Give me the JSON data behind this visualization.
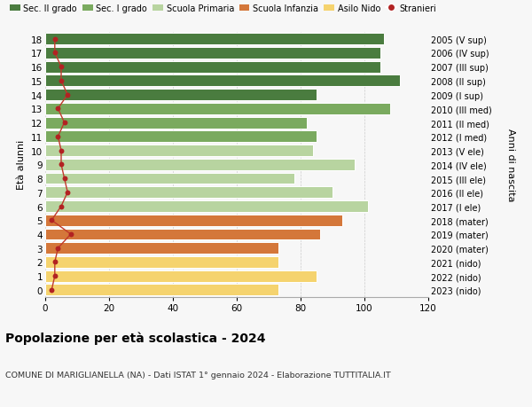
{
  "ages": [
    18,
    17,
    16,
    15,
    14,
    13,
    12,
    11,
    10,
    9,
    8,
    7,
    6,
    5,
    4,
    3,
    2,
    1,
    0
  ],
  "years": [
    "2005 (V sup)",
    "2006 (IV sup)",
    "2007 (III sup)",
    "2008 (II sup)",
    "2009 (I sup)",
    "2010 (III med)",
    "2011 (II med)",
    "2012 (I med)",
    "2013 (V ele)",
    "2014 (IV ele)",
    "2015 (III ele)",
    "2016 (II ele)",
    "2017 (I ele)",
    "2018 (mater)",
    "2019 (mater)",
    "2020 (mater)",
    "2021 (nido)",
    "2022 (nido)",
    "2023 (nido)"
  ],
  "values": [
    106,
    105,
    105,
    111,
    85,
    108,
    82,
    85,
    84,
    97,
    78,
    90,
    101,
    93,
    86,
    73,
    73,
    85,
    73
  ],
  "stranieri": [
    3,
    3,
    5,
    5,
    7,
    4,
    6,
    4,
    5,
    5,
    6,
    7,
    5,
    2,
    8,
    4,
    3,
    3,
    2
  ],
  "bar_colors": [
    "#4a7c3f",
    "#4a7c3f",
    "#4a7c3f",
    "#4a7c3f",
    "#4a7c3f",
    "#7aaa5f",
    "#7aaa5f",
    "#7aaa5f",
    "#b8d4a0",
    "#b8d4a0",
    "#b8d4a0",
    "#b8d4a0",
    "#b8d4a0",
    "#d4773a",
    "#d4773a",
    "#d4773a",
    "#f5d36e",
    "#f5d36e",
    "#f5d36e"
  ],
  "legend_labels": [
    "Sec. II grado",
    "Sec. I grado",
    "Scuola Primaria",
    "Scuola Infanzia",
    "Asilo Nido",
    "Stranieri"
  ],
  "legend_colors": [
    "#4a7c3f",
    "#7aaa5f",
    "#b8d4a0",
    "#d4773a",
    "#f5d36e",
    "#b22222"
  ],
  "title": "Popolazione per età scolastica - 2024",
  "subtitle": "COMUNE DI MARIGLIANELLA (NA) - Dati ISTAT 1° gennaio 2024 - Elaborazione TUTTITALIA.IT",
  "ylabel_left": "Età alunni",
  "ylabel_right": "Anni di nascita",
  "xlim": [
    0,
    120
  ],
  "xticks": [
    0,
    20,
    40,
    60,
    80,
    100,
    120
  ],
  "stranieri_color": "#b22222",
  "stranieri_line_color": "#c0392b",
  "bg_color": "#f7f7f7",
  "bar_height": 0.82
}
